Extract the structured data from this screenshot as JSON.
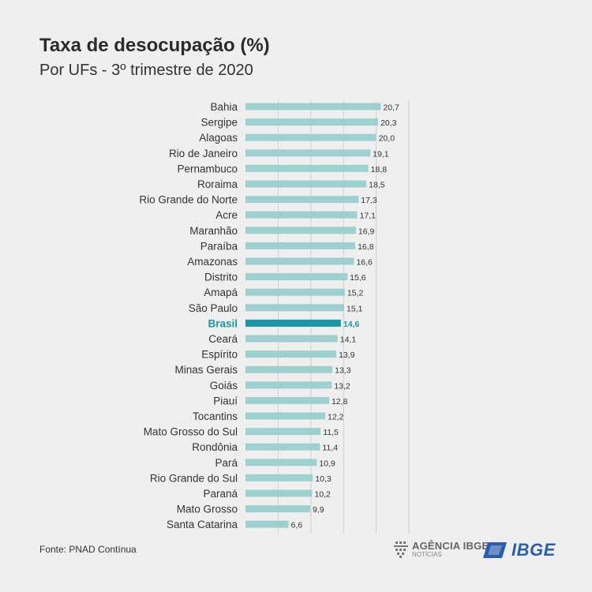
{
  "header": {
    "title": "Taxa de desocupação (%)",
    "subtitle": "Por UFs - 3º trimestre de 2020"
  },
  "footer": {
    "source": "Fonte: PNAD Contínua",
    "agencia_name": "AGÊNCIA IBGE",
    "agencia_sub": "NOTÍCIAS",
    "ibge_logo": "IBGE"
  },
  "colors": {
    "bar": "#9fd0d0",
    "highlight_bar": "#1b97a8",
    "highlight_text": "#1b97a8",
    "grid": "#cfcfcf"
  },
  "chart_data": {
    "type": "bar",
    "orientation": "horizontal",
    "title": "Taxa de desocupação (%)",
    "subtitle": "Por UFs - 3º trimestre de 2020",
    "categories": [
      "Bahia",
      "Sergipe",
      "Alagoas",
      "Rio de Janeiro",
      "Pernambuco",
      "Roraima",
      "Rio Grande do Norte",
      "Acre",
      "Maranhão",
      "Paraíba",
      "Amazonas",
      "Distrito",
      "Amapá",
      "São Paulo",
      "Brasil",
      "Ceará",
      "Espírito",
      "Minas Gerais",
      "Goiás",
      "Piauí",
      "Tocantins",
      "Mato Grosso do Sul",
      "Rondônia",
      "Pará",
      "Rio Grande do Sul",
      "Paraná",
      "Mato Grosso",
      "Santa Catarina"
    ],
    "values": [
      20.7,
      20.3,
      20.0,
      19.1,
      18.8,
      18.5,
      17.3,
      17.1,
      16.9,
      16.8,
      16.6,
      15.6,
      15.2,
      15.1,
      14.6,
      14.1,
      13.9,
      13.3,
      13.2,
      12.8,
      12.2,
      11.5,
      11.4,
      10.9,
      10.3,
      10.2,
      9.9,
      6.6
    ],
    "value_labels": [
      "20,7",
      "20,3",
      "20,0",
      "19,1",
      "18,8",
      "18,5",
      "17,3",
      "17,1",
      "16,9",
      "16,8",
      "16,6",
      "15,6",
      "15,2",
      "15,1",
      "14,6",
      "14,1",
      "13,9",
      "13,3",
      "13,2",
      "12,8",
      "12,2",
      "11,5",
      "11,4",
      "10,9",
      "10,3",
      "10,2",
      "9,9",
      "6,6"
    ],
    "highlight": "Brasil",
    "xlim": [
      0,
      25
    ],
    "grid": true
  }
}
